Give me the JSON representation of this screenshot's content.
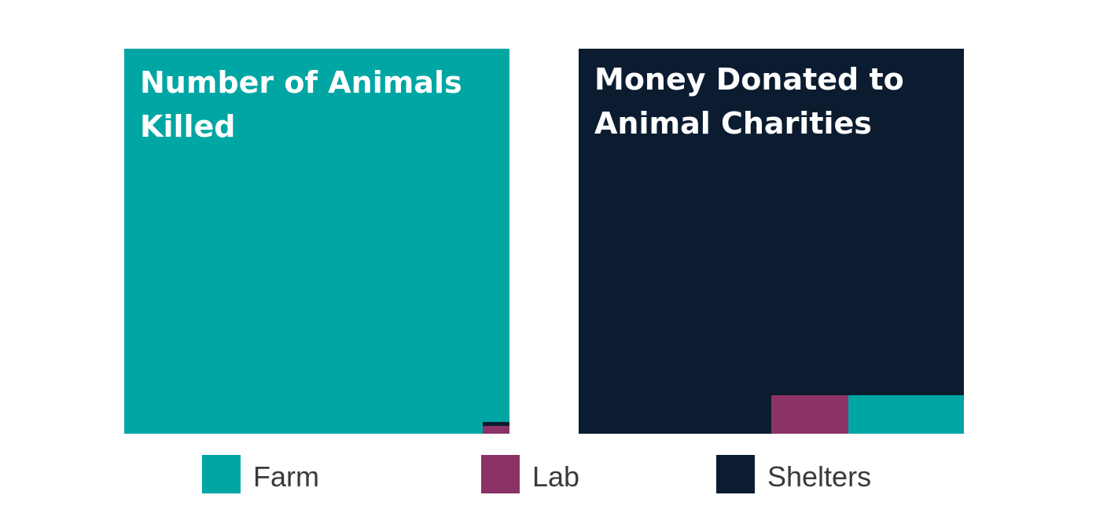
{
  "colors": {
    "farm": "#00a6a3",
    "lab": "#8b3266",
    "shelters": "#0c1c30"
  },
  "chart_data": [
    {
      "type": "treemap",
      "title_lines": [
        "Number of Animals",
        "Killed"
      ],
      "unit": "share of total",
      "items": [
        {
          "name": "Farm",
          "value": 0.998,
          "color": "#00a6a3"
        },
        {
          "name": "Lab",
          "value": 0.0015,
          "color": "#8b3266"
        },
        {
          "name": "Shelters",
          "value": 0.0005,
          "color": "#0c1c30"
        }
      ]
    },
    {
      "type": "treemap",
      "title_lines": [
        "Money Donated to",
        "Animal Charities"
      ],
      "unit": "share of total",
      "items": [
        {
          "name": "Shelters",
          "value": 0.86,
          "color": "#0c1c30"
        },
        {
          "name": "Lab",
          "value": 0.02,
          "color": "#8b3266"
        },
        {
          "name": "Farm",
          "value": 0.03,
          "color": "#00a6a3"
        }
      ]
    }
  ],
  "legend": {
    "placement": "bottom",
    "items": [
      {
        "label": "Farm",
        "color": "#00a6a3"
      },
      {
        "label": "Lab",
        "color": "#8b3266"
      },
      {
        "label": "Shelters",
        "color": "#0c1c30"
      }
    ]
  }
}
